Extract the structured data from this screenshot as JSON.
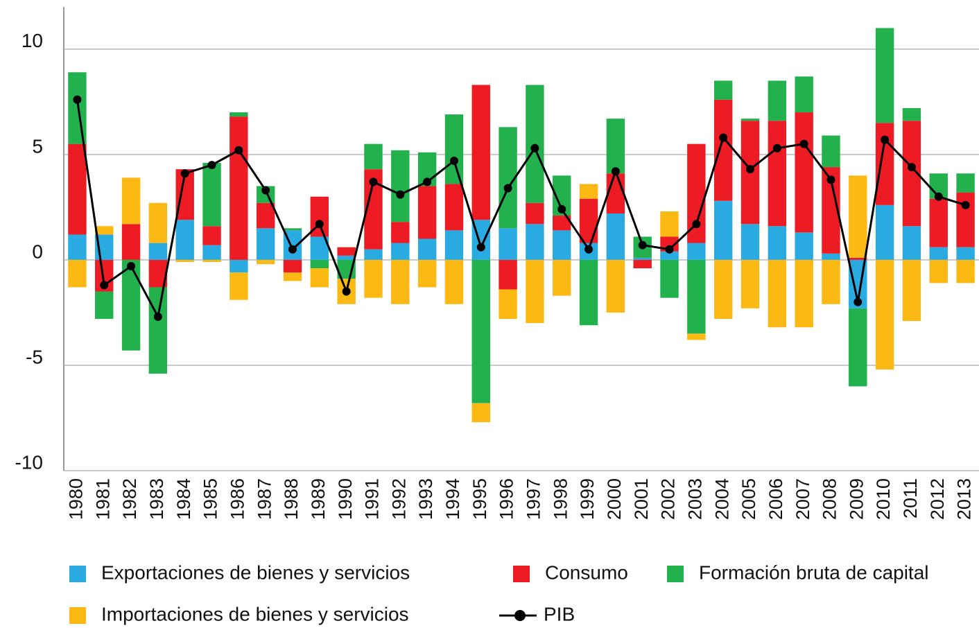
{
  "chart_data": {
    "type": "bar",
    "categories": [
      "1980",
      "1981",
      "1982",
      "1983",
      "1984",
      "1985",
      "1986",
      "1987",
      "1988",
      "1989",
      "1990",
      "1991",
      "1992",
      "1993",
      "1994",
      "1995",
      "1996",
      "1997",
      "1998",
      "1999",
      "2000",
      "2001",
      "2002",
      "2003",
      "2004",
      "2005",
      "2006",
      "2007",
      "2008",
      "2009",
      "2010",
      "2011",
      "2012",
      "2013"
    ],
    "stacked": true,
    "series": [
      {
        "name": "Exportaciones de bienes y servicios",
        "color": "#29abe2",
        "values": [
          1.2,
          1.2,
          0,
          0.8,
          1.9,
          0.7,
          -0.6,
          1.5,
          1.4,
          1.1,
          0.2,
          0.5,
          0.8,
          1.0,
          1.4,
          1.9,
          1.5,
          1.7,
          1.4,
          0.8,
          2.2,
          0.1,
          0.4,
          0.8,
          2.8,
          1.7,
          1.6,
          1.3,
          0.3,
          -2.3,
          2.6,
          1.6,
          0.6,
          0.6
        ]
      },
      {
        "name": "Consumo",
        "color": "#ed1c24",
        "values": [
          4.3,
          -1.5,
          1.7,
          -1.3,
          2.4,
          0.9,
          6.8,
          1.2,
          -0.6,
          1.9,
          0.4,
          3.8,
          1.0,
          2.5,
          2.2,
          6.4,
          -1.4,
          1.0,
          0.7,
          2.1,
          1.9,
          -0.4,
          0.7,
          4.7,
          4.8,
          4.9,
          5.0,
          5.7,
          4.1,
          0.1,
          3.9,
          5.0,
          2.3,
          2.6
        ]
      },
      {
        "name": "Formación bruta de capital",
        "color": "#22b14c",
        "values": [
          3.4,
          -1.3,
          -4.3,
          -4.1,
          0,
          3.0,
          0.2,
          0.8,
          0.1,
          -0.4,
          -0.9,
          1.2,
          3.4,
          1.6,
          3.3,
          -6.8,
          4.8,
          5.6,
          1.9,
          -3.1,
          2.6,
          1.0,
          -1.8,
          -3.5,
          0.9,
          0.1,
          1.9,
          1.7,
          1.5,
          -3.7,
          4.5,
          0.6,
          1.2,
          0.9
        ]
      },
      {
        "name": "Importaciones de bienes y servicios",
        "color": "#fdb913",
        "values": [
          -1.3,
          0.4,
          2.2,
          1.9,
          -0.1,
          -0.1,
          -1.3,
          -0.2,
          -0.4,
          -0.9,
          -1.2,
          -1.8,
          -2.1,
          -1.3,
          -2.1,
          -0.9,
          -1.4,
          -3.0,
          -1.7,
          0.7,
          -2.5,
          0,
          1.2,
          -0.3,
          -2.8,
          -2.3,
          -3.2,
          -3.2,
          -2.1,
          3.9,
          -5.2,
          -2.9,
          -1.1,
          -1.1
        ]
      },
      {
        "name": "PIB",
        "type": "line",
        "color": "#000000",
        "values": [
          7.6,
          -1.2,
          -0.3,
          -2.7,
          4.1,
          4.5,
          5.2,
          3.3,
          0.5,
          1.7,
          -1.5,
          3.7,
          3.1,
          3.7,
          4.7,
          0.6,
          3.4,
          5.3,
          2.4,
          0.5,
          4.2,
          0.7,
          0.5,
          1.7,
          5.8,
          4.3,
          5.3,
          5.5,
          3.8,
          -2.0,
          5.7,
          4.4,
          3.0,
          2.6
        ]
      }
    ],
    "ylim": [
      -10,
      12
    ],
    "yticks": [
      -10,
      -5,
      0,
      5,
      10
    ],
    "grid": true,
    "legend": "bottom"
  }
}
